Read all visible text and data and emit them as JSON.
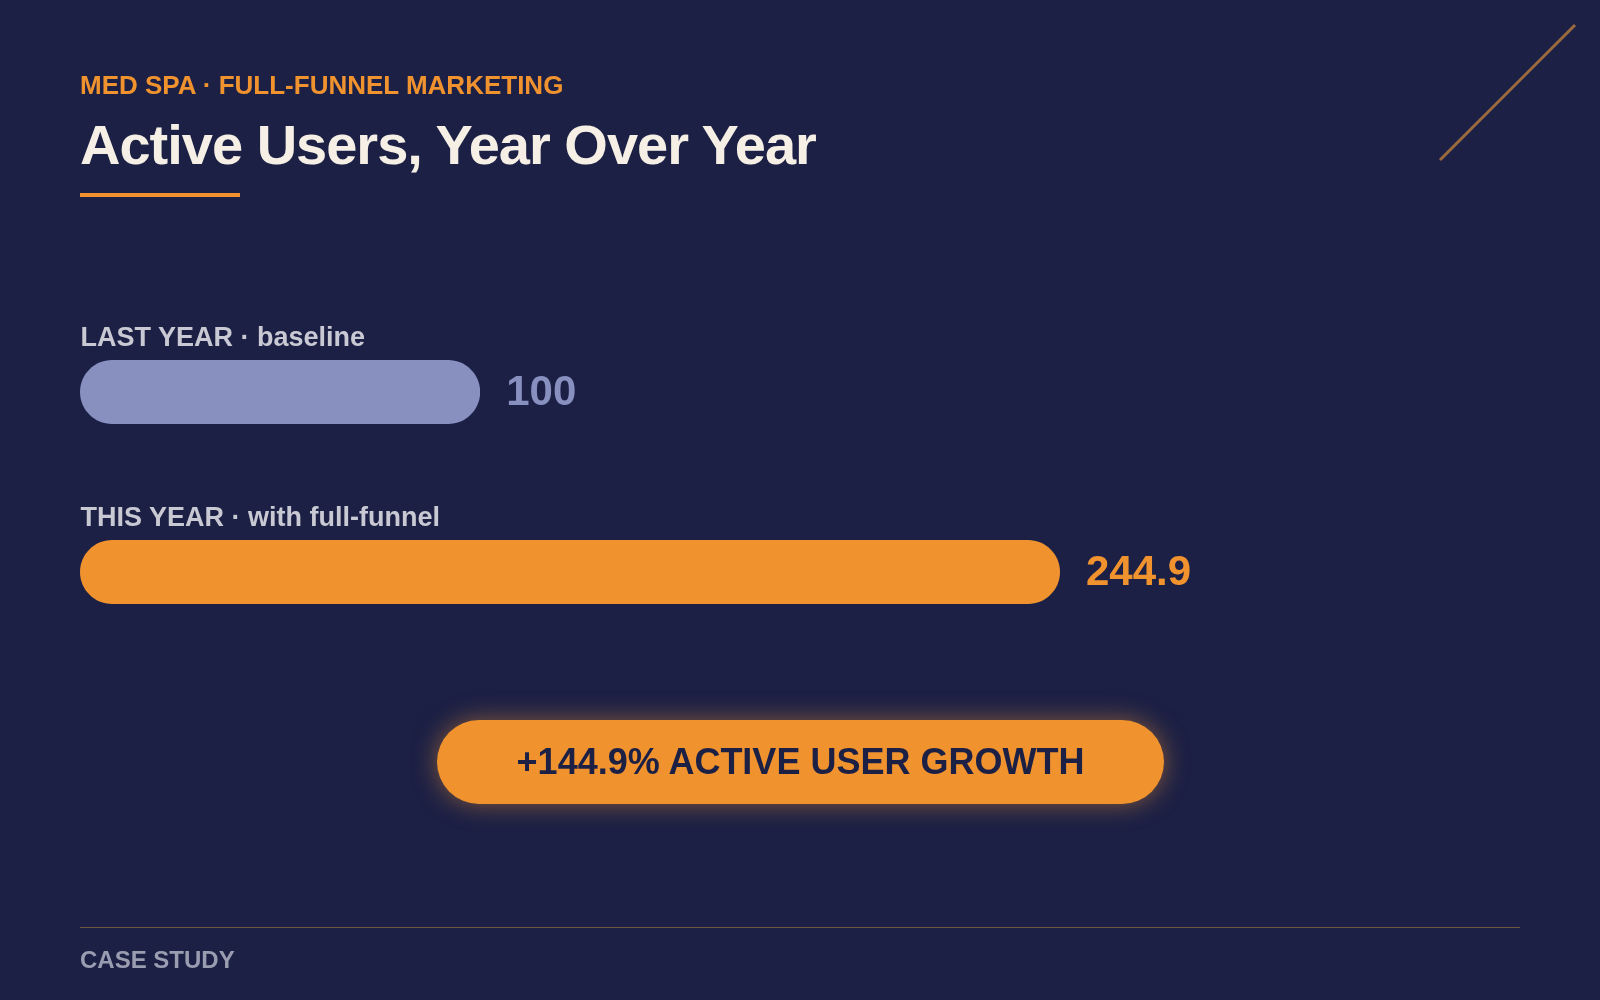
{
  "chart_data": {
    "type": "bar",
    "orientation": "horizontal",
    "subtitle": "MED SPA · FULL-FUNNEL MARKETING",
    "title": "Active Users, Year Over Year",
    "categories": [
      "LAST YEAR · baseline",
      "THIS YEAR · with full-funnel"
    ],
    "values": [
      100,
      244.9
    ],
    "colors": [
      "#8890c0",
      "#f0932f"
    ],
    "data_labels": true,
    "annotations": [
      "+144.9% ACTIVE USER GROWTH",
      "CASE STUDY"
    ]
  }
}
